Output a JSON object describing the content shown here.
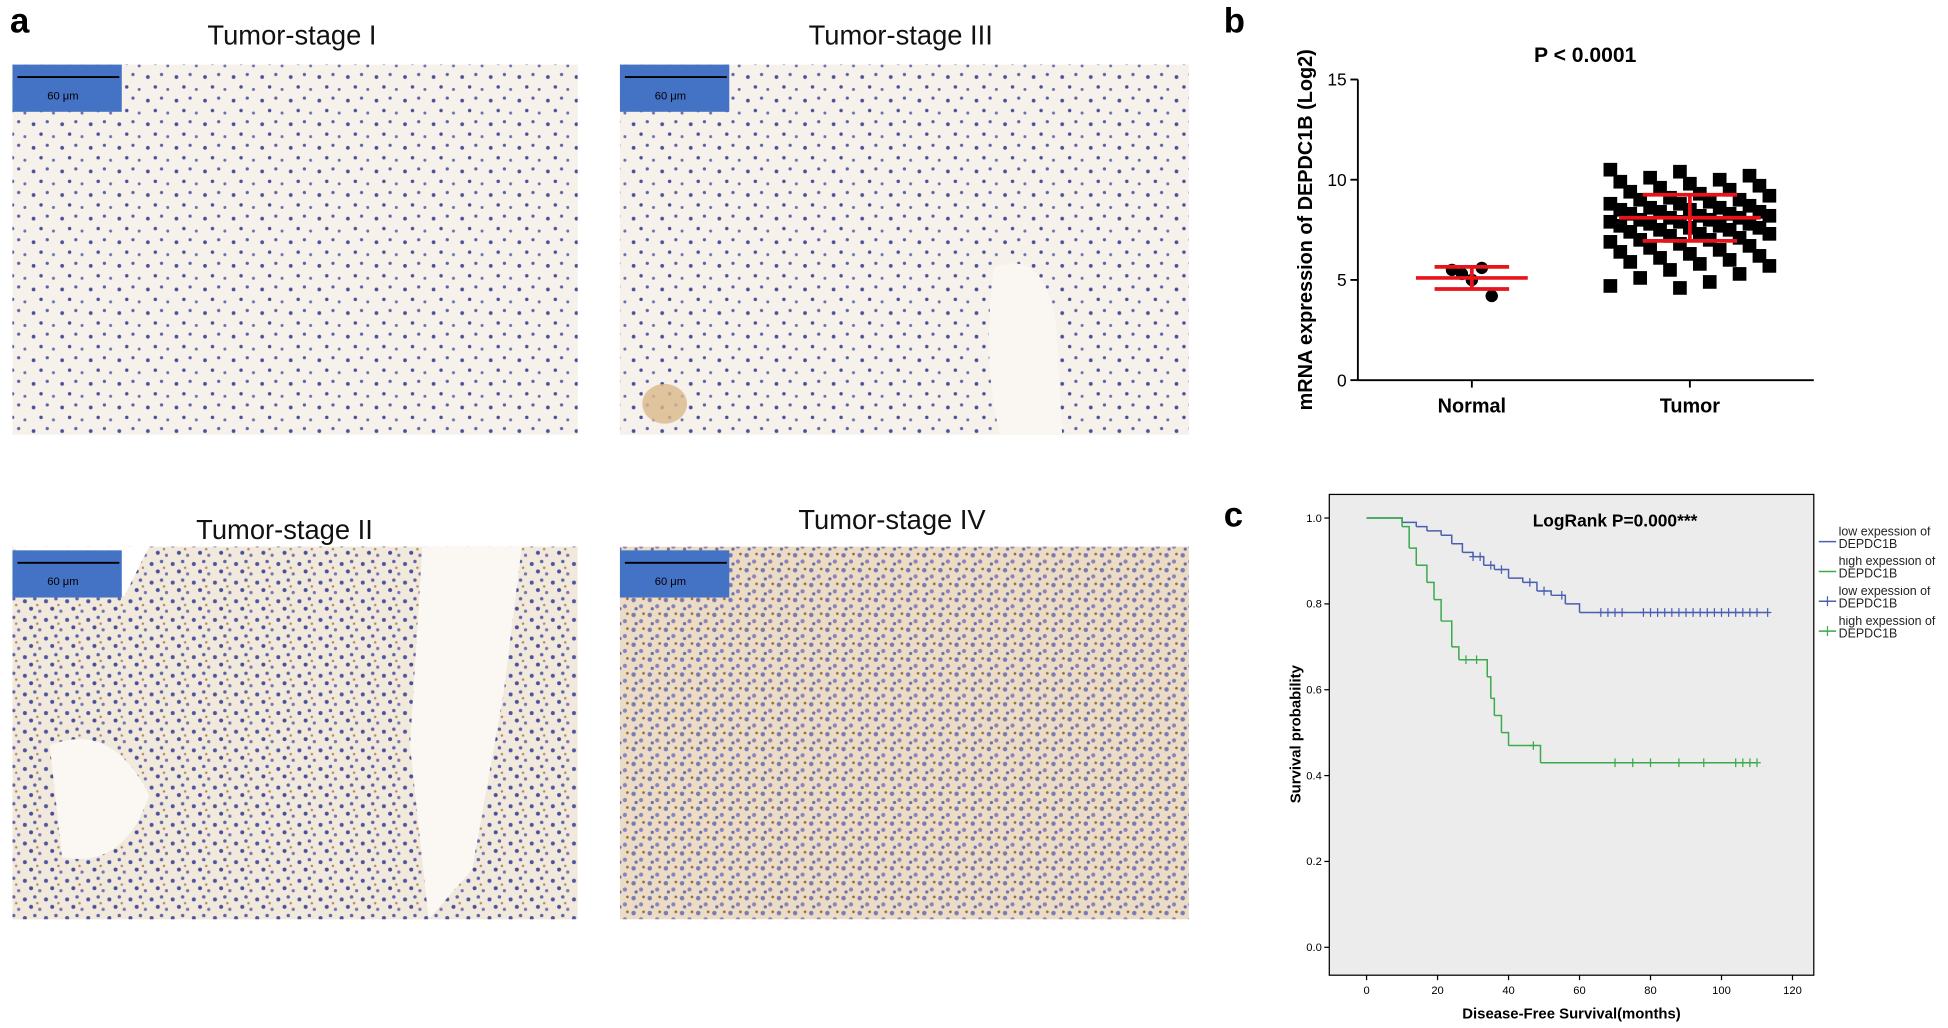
{
  "panel_labels": [
    "a",
    "b",
    "c"
  ],
  "images": [
    {
      "title": "Tumor-stage I",
      "scale_bar": "60 μm"
    },
    {
      "title": "Tumor-stage III",
      "scale_bar": "60 μm"
    },
    {
      "title": "Tumor-stage II",
      "scale_bar": "60 μm"
    },
    {
      "title": "Tumor-stage IV",
      "scale_bar": "60 μm"
    }
  ],
  "chart_data": [
    {
      "type": "dot",
      "title": "P < 0.0001",
      "y_label": "mRNA expression of DEPDC1B (Log2)",
      "categories": [
        "Normal",
        "Tumor"
      ],
      "values": [
        [
          5.5,
          5.6,
          5.3,
          4.2,
          5.0
        ],
        [
          10.5,
          10.4,
          10.2,
          10.1,
          10.0,
          9.9,
          9.8,
          9.7,
          9.6,
          9.5,
          9.4,
          9.3,
          9.2,
          9.1,
          9.0,
          9.0,
          8.9,
          8.8,
          8.8,
          8.7,
          8.6,
          8.6,
          8.5,
          8.5,
          8.4,
          8.4,
          8.3,
          8.3,
          8.2,
          8.2,
          8.1,
          8.1,
          8.0,
          8.0,
          7.9,
          7.9,
          7.8,
          7.8,
          7.7,
          7.7,
          7.6,
          7.6,
          7.5,
          7.5,
          7.4,
          7.3,
          7.3,
          7.2,
          7.1,
          7.0,
          7.0,
          6.9,
          6.8,
          6.7,
          6.6,
          6.5,
          6.4,
          6.3,
          6.2,
          6.1,
          6.0,
          5.9,
          5.8,
          5.7,
          5.5,
          5.3,
          5.1,
          4.9,
          4.7,
          4.6
        ]
      ],
      "means": [
        5.1,
        8.1
      ],
      "sds": [
        0.55,
        1.15
      ],
      "color": "#000000",
      "summary_color": "#e8141b",
      "ylim": [
        0,
        15
      ],
      "yticks": [
        0,
        5,
        10,
        15
      ]
    },
    {
      "type": "km",
      "title": "LogRank P=0.000***",
      "x_label": "Disease-Free Survival(months)",
      "y_label": "Survival probability",
      "background": "#ececec",
      "xlim": [
        -10.5,
        126
      ],
      "ylim": [
        -0.065,
        1.055
      ],
      "xticks": [
        0,
        20,
        40,
        60,
        80,
        100,
        120
      ],
      "yticks": [
        {
          "value": 0,
          "label": "0.0"
        },
        {
          "value": 0.2,
          "label": "0.2"
        },
        {
          "value": 0.4,
          "label": "0.4"
        },
        {
          "value": 0.6,
          "label": "0.6"
        },
        {
          "value": 0.8,
          "label": "0.8"
        },
        {
          "value": 1,
          "label": "1.0"
        }
      ],
      "series": [
        {
          "name": "low expession of DEPDC1B",
          "kind": "line",
          "color": "#4b5fb0",
          "x": [
            0,
            10,
            14,
            17,
            21,
            24,
            27,
            30,
            33,
            36,
            40,
            44,
            48,
            52,
            56,
            60,
            113
          ],
          "values": [
            1.0,
            0.99,
            0.98,
            0.97,
            0.96,
            0.94,
            0.92,
            0.91,
            0.89,
            0.88,
            0.86,
            0.85,
            0.83,
            0.82,
            0.8,
            0.78,
            0.78
          ]
        },
        {
          "name": "high expession of DEPDC1B",
          "kind": "line",
          "color": "#3aaa4a",
          "x": [
            0,
            10,
            12,
            14,
            17,
            19,
            21,
            24,
            26,
            34,
            35,
            36,
            38,
            40,
            49,
            110
          ],
          "values": [
            1.0,
            0.98,
            0.93,
            0.89,
            0.85,
            0.81,
            0.76,
            0.7,
            0.67,
            0.63,
            0.58,
            0.54,
            0.5,
            0.47,
            0.43,
            0.43
          ]
        },
        {
          "name": "low expession of DEPDC1B",
          "kind": "censored",
          "color": "#4b5fb0",
          "x": [
            30,
            32,
            35,
            38,
            46,
            50,
            55,
            66,
            68,
            70,
            72,
            78,
            80,
            82,
            84,
            86,
            88,
            90,
            92,
            94,
            96,
            98,
            100,
            102,
            104,
            106,
            108,
            110,
            113
          ],
          "values": [
            0.91,
            0.91,
            0.89,
            0.88,
            0.85,
            0.83,
            0.82,
            0.78,
            0.78,
            0.78,
            0.78,
            0.78,
            0.78,
            0.78,
            0.78,
            0.78,
            0.78,
            0.78,
            0.78,
            0.78,
            0.78,
            0.78,
            0.78,
            0.78,
            0.78,
            0.78,
            0.78,
            0.78,
            0.78
          ]
        },
        {
          "name": "high expession of DEPDC1B",
          "kind": "censored",
          "color": "#3aaa4a",
          "x": [
            28,
            31,
            47,
            70,
            75,
            80,
            88,
            95,
            104,
            106,
            108,
            110
          ],
          "values": [
            0.67,
            0.67,
            0.47,
            0.43,
            0.43,
            0.43,
            0.43,
            0.43,
            0.43,
            0.43,
            0.43,
            0.43
          ]
        }
      ]
    }
  ]
}
